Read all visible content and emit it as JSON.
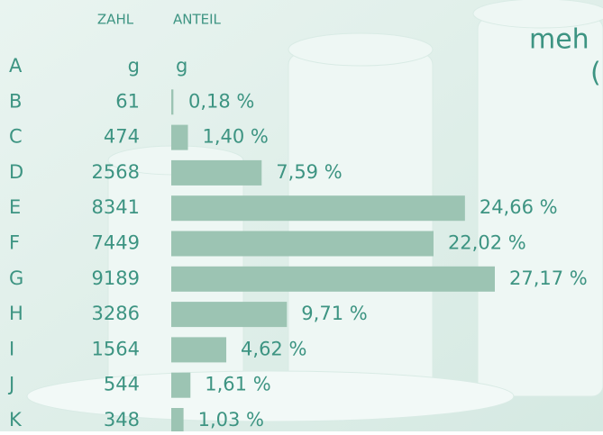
{
  "chart_data": {
    "type": "bar",
    "orientation": "horizontal",
    "title_fragments": [
      "meh",
      "("
    ],
    "column_headers": [
      "ZAHL",
      "ANTEIL"
    ],
    "unit_row": {
      "category": "A",
      "units": [
        "g",
        "g"
      ]
    },
    "categories": [
      "B",
      "C",
      "D",
      "E",
      "F",
      "G",
      "H",
      "I",
      "J",
      "K"
    ],
    "counts": [
      61,
      474,
      2568,
      8341,
      7449,
      9189,
      3286,
      1564,
      544,
      348
    ],
    "values": [
      0.18,
      1.4,
      7.59,
      24.66,
      22.02,
      27.17,
      9.71,
      4.62,
      1.61,
      1.03
    ],
    "value_labels": [
      "0,18 %",
      "1,40 %",
      "7,59 %",
      "24,66 %",
      "22,02 %",
      "27,17 %",
      "9,71 %",
      "4,62 %",
      "1,61 %",
      "1,03 %"
    ],
    "color": "#9cc4b3"
  }
}
